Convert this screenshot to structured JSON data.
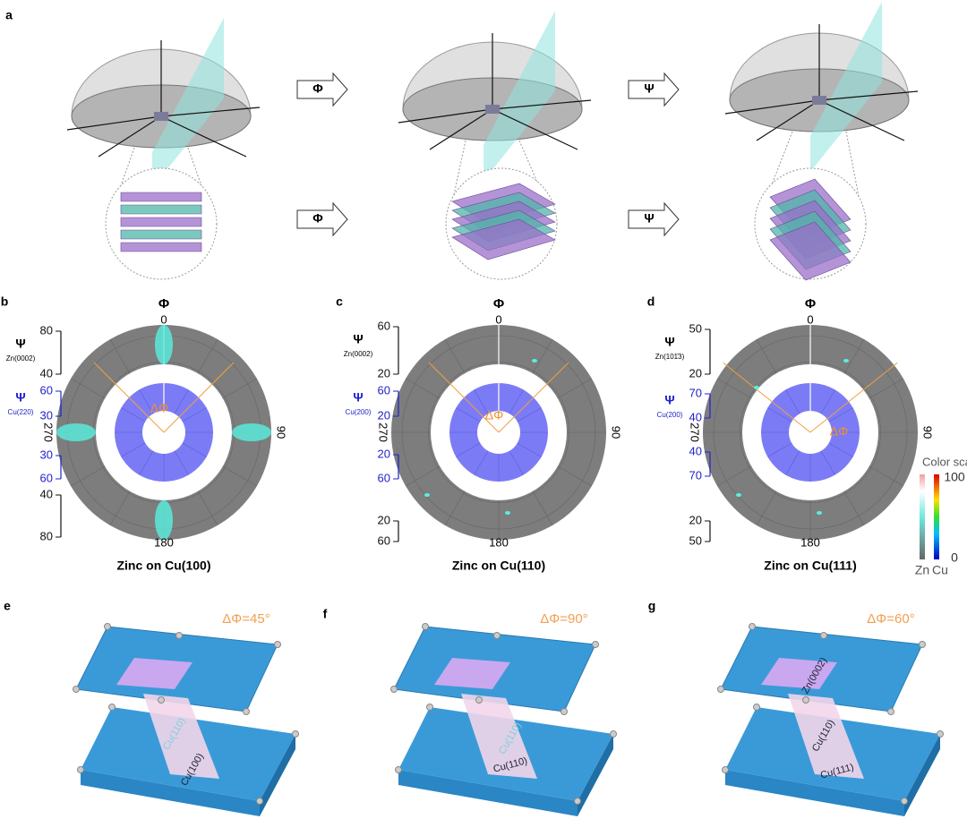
{
  "panel_a": {
    "label": "a",
    "arrows": [
      "Φ",
      "Ψ",
      "Φ",
      "Ψ"
    ]
  },
  "pole_figures": [
    {
      "label": "b",
      "phi": "Φ",
      "angles": [
        "0",
        "90",
        "180",
        "270"
      ],
      "title": "Zinc on Cu(100)",
      "delta": "ΔΦ",
      "zn_axis": {
        "symbol": "Ψ",
        "sub": "Zn(0002)",
        "top": [
          "80",
          "40"
        ],
        "bottom": [
          "40",
          "80"
        ]
      },
      "cu_axis": {
        "symbol": "Ψ",
        "sub": "Cu(220)",
        "top": [
          "60",
          "30"
        ],
        "bottom": [
          "30",
          "60"
        ]
      }
    },
    {
      "label": "c",
      "phi": "Φ",
      "angles": [
        "0",
        "90",
        "180",
        "270"
      ],
      "title": "Zinc on Cu(110)",
      "delta": "ΔΦ",
      "zn_axis": {
        "symbol": "Ψ",
        "sub": "Zn(0002)",
        "top": [
          "60",
          "20"
        ],
        "bottom": [
          "20",
          "60"
        ]
      },
      "cu_axis": {
        "symbol": "Ψ",
        "sub": "Cu(200)",
        "top": [
          "60",
          "20"
        ],
        "bottom": [
          "20",
          "60"
        ]
      }
    },
    {
      "label": "d",
      "phi": "Φ",
      "angles": [
        "0",
        "90",
        "180",
        "270"
      ],
      "title": "Zinc on Cu(111)",
      "delta": "ΔΦ",
      "zn_axis": {
        "symbol": "Ψ",
        "sub": "Zn(101̄3)",
        "top": [
          "50",
          "20"
        ],
        "bottom": [
          "20",
          "50"
        ]
      },
      "cu_axis": {
        "symbol": "Ψ",
        "sub": "Cu(200)",
        "top": [
          "70",
          "40"
        ],
        "bottom": [
          "40",
          "70"
        ]
      }
    }
  ],
  "color_scale": {
    "title": "Color scale",
    "max": "100",
    "min": "0",
    "labels": [
      "Zn",
      "Cu"
    ]
  },
  "models": [
    {
      "label": "e",
      "delta": "ΔΦ=45°",
      "planes": [
        "Cu(110)",
        "Cu(100)"
      ]
    },
    {
      "label": "f",
      "delta": "ΔΦ=90°",
      "planes": [
        "Cu(110)",
        "Cu(110)"
      ]
    },
    {
      "label": "g",
      "delta": "ΔΦ=60°",
      "planes": [
        "Zn(0002)",
        "Cu(110)",
        "Cu(111)"
      ]
    }
  ]
}
